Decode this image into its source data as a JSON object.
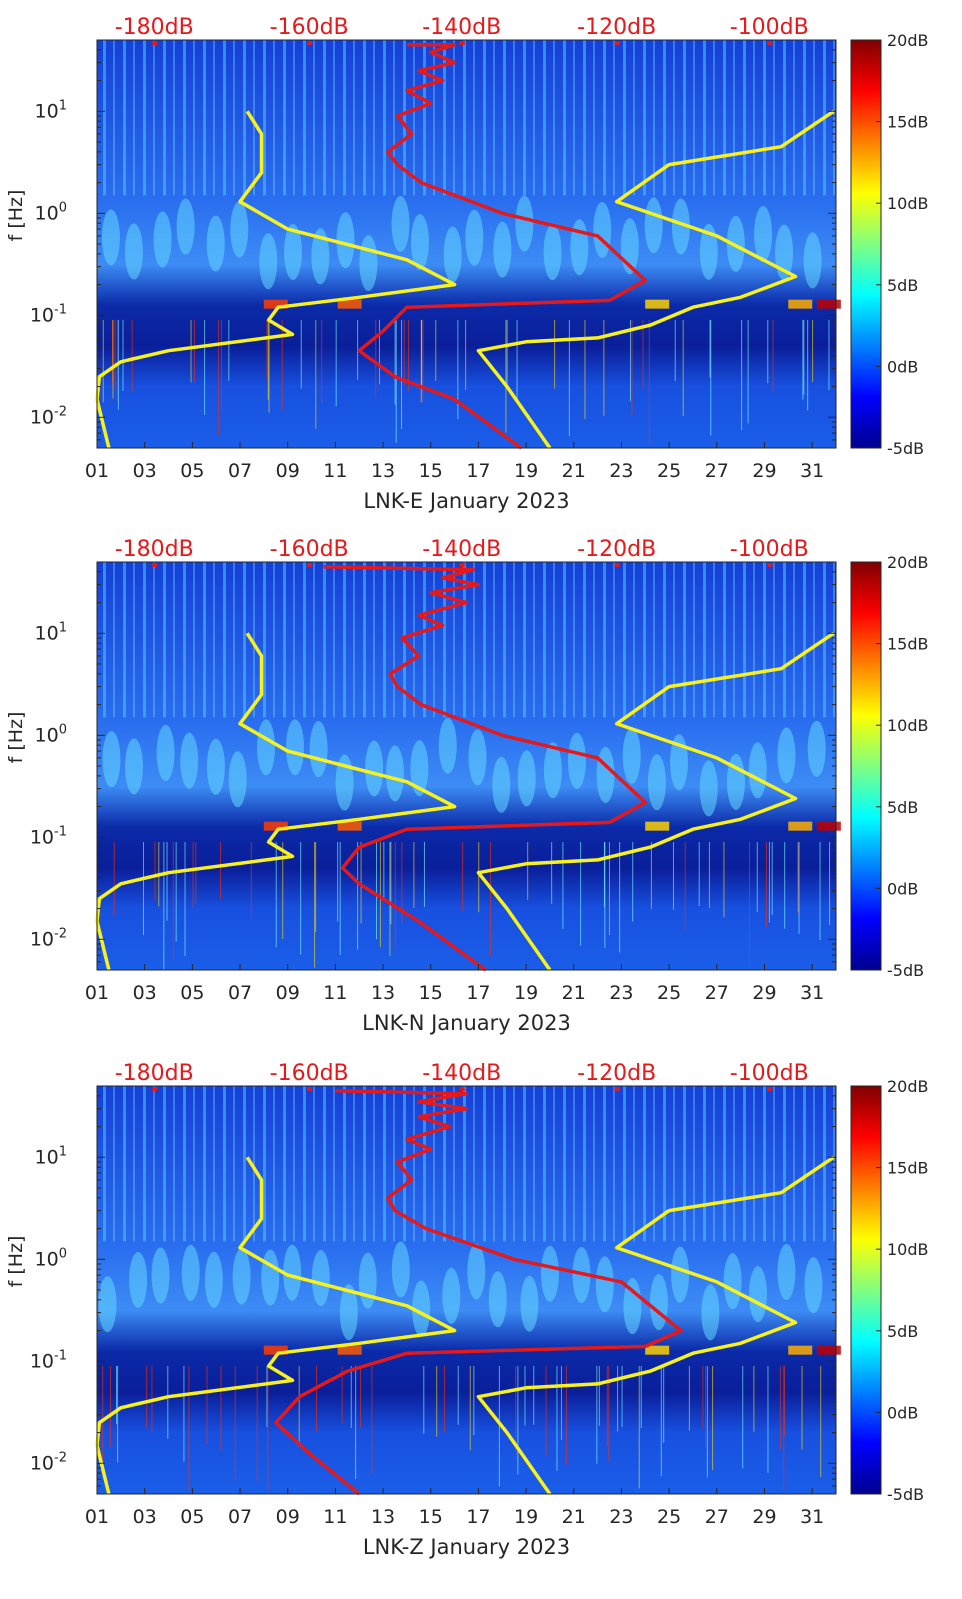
{
  "chart_data": {
    "type": "heatmap",
    "ylabel": "f [Hz]",
    "yscale": "log",
    "ylim": [
      0.005,
      50
    ],
    "xlim": [
      1,
      32
    ],
    "x_ticks": [
      "01",
      "03",
      "05",
      "07",
      "09",
      "11",
      "13",
      "15",
      "17",
      "19",
      "21",
      "23",
      "25",
      "27",
      "29",
      "31"
    ],
    "x_tick_values": [
      1,
      3,
      5,
      7,
      9,
      11,
      13,
      15,
      17,
      19,
      21,
      23,
      25,
      27,
      29,
      31
    ],
    "y_ticks": [
      {
        "value": 10,
        "base": "10",
        "exp": "1"
      },
      {
        "value": 1,
        "base": "10",
        "exp": "0"
      },
      {
        "value": 0.1,
        "base": "10",
        "exp": "-1"
      },
      {
        "value": 0.01,
        "base": "10",
        "exp": "-2"
      }
    ],
    "top_axis": {
      "labels": [
        "-180dB",
        "-160dB",
        "-140dB",
        "-120dB",
        "-100dB"
      ],
      "day_positions": [
        3.4,
        9.9,
        16.3,
        22.8,
        29.2
      ]
    },
    "colorbar": {
      "labels": [
        "20dB",
        "15dB",
        "10dB",
        "5dB",
        "0dB",
        "-5dB"
      ],
      "range": [
        -5,
        20
      ],
      "colors": [
        "#00008f",
        "#0000ff",
        "#0080ff",
        "#00ffff",
        "#80ff80",
        "#ffff00",
        "#ff8000",
        "#ff0000",
        "#800000"
      ]
    },
    "series_colors": {
      "red": "#e3191c",
      "yellow": "#f7f21e"
    },
    "panels": [
      {
        "xlabel": "LNK-E January 2023",
        "yellow_left": [
          [
            7.3,
            10
          ],
          [
            7.9,
            6
          ],
          [
            7.9,
            2.5
          ],
          [
            7,
            1.3
          ],
          [
            9,
            0.7
          ],
          [
            14,
            0.35
          ],
          [
            16,
            0.2
          ],
          [
            12,
            0.15
          ],
          [
            8.6,
            0.12
          ],
          [
            8.2,
            0.09
          ],
          [
            9.2,
            0.065
          ],
          [
            4,
            0.045
          ],
          [
            2,
            0.035
          ],
          [
            1.1,
            0.025
          ],
          [
            1,
            0.015
          ],
          [
            1.5,
            0.005
          ]
        ],
        "yellow_right": [
          [
            31.9,
            10
          ],
          [
            29.7,
            4.5
          ],
          [
            25,
            3
          ],
          [
            22.8,
            1.3
          ],
          [
            27,
            0.6
          ],
          [
            30.3,
            0.24
          ],
          [
            28,
            0.15
          ],
          [
            26,
            0.12
          ],
          [
            24.2,
            0.08
          ],
          [
            22,
            0.06
          ],
          [
            19,
            0.055
          ],
          [
            17,
            0.045
          ],
          [
            18.2,
            0.02
          ],
          [
            20,
            0.005
          ]
        ],
        "red": [
          [
            14,
            45
          ],
          [
            16,
            45
          ],
          [
            15,
            38
          ],
          [
            16,
            30
          ],
          [
            14.5,
            25
          ],
          [
            15.5,
            20
          ],
          [
            14,
            16
          ],
          [
            15,
            12
          ],
          [
            13.6,
            9
          ],
          [
            14.2,
            6
          ],
          [
            13.2,
            4
          ],
          [
            13.6,
            3
          ],
          [
            14.6,
            2
          ],
          [
            18,
            1
          ],
          [
            22,
            0.6
          ],
          [
            24,
            0.22
          ],
          [
            22.5,
            0.14
          ],
          [
            14,
            0.12
          ],
          [
            13,
            0.07
          ],
          [
            12,
            0.045
          ],
          [
            13.5,
            0.025
          ],
          [
            16,
            0.015
          ],
          [
            18.8,
            0.005
          ]
        ]
      },
      {
        "xlabel": "LNK-N January 2023",
        "yellow_left": [
          [
            7.3,
            10
          ],
          [
            7.9,
            6
          ],
          [
            7.9,
            2.5
          ],
          [
            7,
            1.3
          ],
          [
            9,
            0.7
          ],
          [
            14,
            0.35
          ],
          [
            16,
            0.2
          ],
          [
            12,
            0.15
          ],
          [
            8.6,
            0.12
          ],
          [
            8.2,
            0.09
          ],
          [
            9.2,
            0.065
          ],
          [
            4,
            0.045
          ],
          [
            2,
            0.035
          ],
          [
            1.1,
            0.025
          ],
          [
            1,
            0.015
          ],
          [
            1.5,
            0.005
          ]
        ],
        "yellow_right": [
          [
            31.9,
            10
          ],
          [
            29.7,
            4.5
          ],
          [
            25,
            3
          ],
          [
            22.8,
            1.3
          ],
          [
            27,
            0.6
          ],
          [
            30.3,
            0.24
          ],
          [
            28,
            0.15
          ],
          [
            26,
            0.12
          ],
          [
            24.2,
            0.08
          ],
          [
            22,
            0.06
          ],
          [
            19,
            0.055
          ],
          [
            17,
            0.045
          ],
          [
            18.2,
            0.02
          ],
          [
            20,
            0.005
          ]
        ],
        "red": [
          [
            10.5,
            45
          ],
          [
            16.8,
            42
          ],
          [
            15.5,
            35
          ],
          [
            17,
            30
          ],
          [
            15,
            25
          ],
          [
            16.5,
            20
          ],
          [
            14.5,
            15
          ],
          [
            15.5,
            12
          ],
          [
            13.8,
            9
          ],
          [
            14.5,
            6
          ],
          [
            13.3,
            4
          ],
          [
            13.6,
            3
          ],
          [
            14.6,
            2
          ],
          [
            18,
            1
          ],
          [
            22,
            0.6
          ],
          [
            24,
            0.22
          ],
          [
            22.5,
            0.14
          ],
          [
            14,
            0.12
          ],
          [
            12,
            0.08
          ],
          [
            11.3,
            0.05
          ],
          [
            12,
            0.035
          ],
          [
            14.5,
            0.015
          ],
          [
            17.3,
            0.005
          ]
        ]
      },
      {
        "xlabel": "LNK-Z January 2023",
        "yellow_left": [
          [
            7.3,
            10
          ],
          [
            7.9,
            6
          ],
          [
            7.9,
            2.5
          ],
          [
            7,
            1.3
          ],
          [
            9,
            0.7
          ],
          [
            14,
            0.35
          ],
          [
            16,
            0.2
          ],
          [
            12,
            0.15
          ],
          [
            8.6,
            0.12
          ],
          [
            8.2,
            0.09
          ],
          [
            9.2,
            0.065
          ],
          [
            4,
            0.045
          ],
          [
            2,
            0.035
          ],
          [
            1.1,
            0.025
          ],
          [
            1,
            0.015
          ],
          [
            1.5,
            0.005
          ]
        ],
        "yellow_right": [
          [
            31.9,
            10
          ],
          [
            29.7,
            4.5
          ],
          [
            25,
            3
          ],
          [
            22.8,
            1.3
          ],
          [
            27,
            0.6
          ],
          [
            30.3,
            0.24
          ],
          [
            28,
            0.15
          ],
          [
            26,
            0.12
          ],
          [
            24.2,
            0.08
          ],
          [
            22,
            0.06
          ],
          [
            19,
            0.055
          ],
          [
            17,
            0.045
          ],
          [
            18.2,
            0.02
          ],
          [
            20,
            0.005
          ]
        ],
        "red": [
          [
            11,
            45
          ],
          [
            16.5,
            42
          ],
          [
            14.5,
            35
          ],
          [
            16.5,
            30
          ],
          [
            14.5,
            25
          ],
          [
            15.8,
            20
          ],
          [
            14,
            15
          ],
          [
            15,
            12
          ],
          [
            13.6,
            9
          ],
          [
            14.2,
            6
          ],
          [
            13.2,
            4
          ],
          [
            13.5,
            3
          ],
          [
            14.8,
            2
          ],
          [
            18.5,
            1
          ],
          [
            23,
            0.6
          ],
          [
            25.5,
            0.2
          ],
          [
            24,
            0.14
          ],
          [
            14,
            0.12
          ],
          [
            11.5,
            0.08
          ],
          [
            9.5,
            0.045
          ],
          [
            8.5,
            0.025
          ],
          [
            10,
            0.012
          ],
          [
            12,
            0.005
          ]
        ]
      }
    ]
  }
}
